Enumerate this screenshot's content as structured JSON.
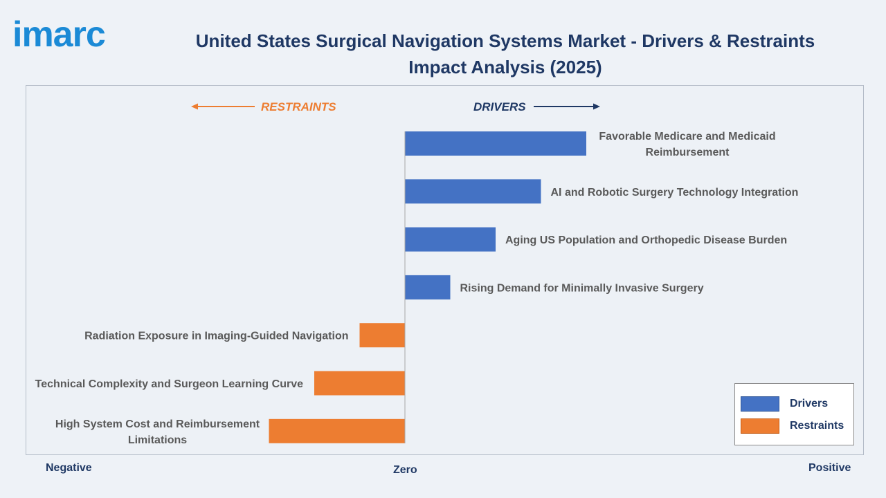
{
  "brand": {
    "logo_text": "imarc",
    "logo_color": "#1b8ad6",
    "dot_color": "#1b8ad6"
  },
  "title": "United States Surgical Navigation Systems Market - Drivers & Restraints Impact Analysis (2025)",
  "colors": {
    "drivers": "#4472c4",
    "restraints": "#ed7d31",
    "drivers_label": "#1f3864",
    "restraints_label": "#ed7d31",
    "label_text": "#595959",
    "zero_line": "#a6a6a6"
  },
  "direction_labels": {
    "restraints": "RESTRAINTS",
    "drivers": "DRIVERS"
  },
  "axis_words": {
    "negative": "Negative",
    "zero": "Zero",
    "positive": "Positive"
  },
  "legend": {
    "items": [
      {
        "label": "Drivers",
        "color": "#4472c4",
        "border": "#2f5597"
      },
      {
        "label": "Restraints",
        "color": "#ed7d31",
        "border": "#c55a11"
      }
    ]
  },
  "chart_data": {
    "type": "bar",
    "orientation": "horizontal",
    "xlim": [
      -3,
      4
    ],
    "categories": [
      "Favorable Medicare and Medicaid Reimbursement",
      "AI and Robotic Surgery Technology Integration",
      "Aging US Population and Orthopedic Disease Burden",
      "Rising Demand for Minimally Invasive Surgery",
      "Radiation Exposure in Imaging-Guided Navigation",
      "Technical Complexity and Surgeon Learning Curve",
      "High System Cost and Reimbursement Limitations"
    ],
    "series": [
      {
        "name": "Drivers",
        "values": [
          4,
          3,
          2,
          1,
          null,
          null,
          null
        ]
      },
      {
        "name": "Restraints",
        "values": [
          null,
          null,
          null,
          null,
          -1,
          -2,
          -3
        ]
      }
    ],
    "label_lines": [
      [
        "Favorable Medicare and Medicaid",
        "Reimbursement"
      ],
      [
        "AI and Robotic Surgery Technology Integration"
      ],
      [
        "Aging US Population and Orthopedic Disease Burden"
      ],
      [
        "Rising Demand for Minimally Invasive Surgery"
      ],
      [
        "Radiation Exposure in Imaging-Guided Navigation"
      ],
      [
        "Technical Complexity and Surgeon Learning Curve"
      ],
      [
        "High System Cost and Reimbursement",
        "Limitations"
      ]
    ],
    "grid": false,
    "legend_position": "bottom-right"
  }
}
